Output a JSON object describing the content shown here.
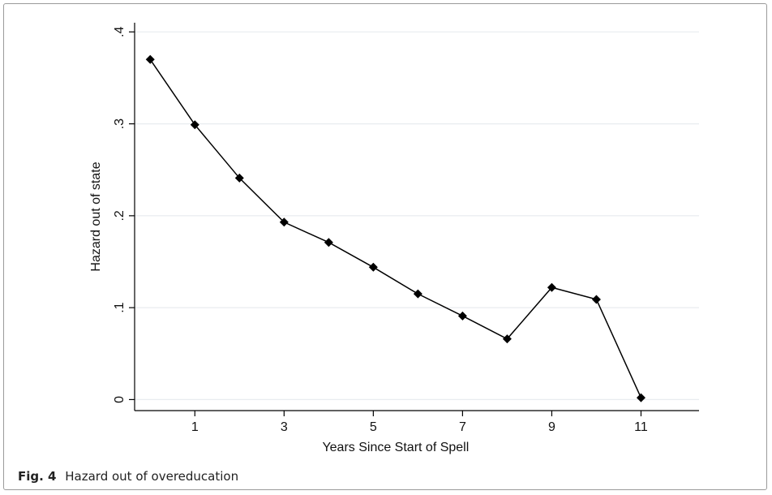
{
  "chart_data": {
    "type": "line",
    "title": "",
    "xlabel": "Years Since Start of Spell",
    "ylabel": "Hazard out of state",
    "x": [
      0,
      1,
      2,
      3,
      4,
      5,
      6,
      7,
      8,
      9,
      10,
      11
    ],
    "series": [
      {
        "values": [
          0.37,
          0.299,
          0.241,
          0.193,
          0.171,
          0.144,
          0.115,
          0.091,
          0.066,
          0.122,
          0.109,
          0.002
        ]
      }
    ],
    "xticks": [
      1,
      3,
      5,
      7,
      9,
      11
    ],
    "xtick_labels": [
      "1",
      "3",
      "5",
      "7",
      "9",
      "11"
    ],
    "yticks": [
      0,
      0.1,
      0.2,
      0.3,
      0.4
    ],
    "ytick_labels": [
      "0",
      ".1",
      ".2",
      ".3",
      ".4"
    ],
    "xlim": [
      -0.35,
      12.3
    ],
    "ylim": [
      -0.012,
      0.41
    ],
    "grid": true,
    "marker": "diamond",
    "line_color": "#000000",
    "grid_color": "#e8ecef"
  },
  "caption": {
    "label": "Fig. 4",
    "text": "Hazard out of overeducation"
  }
}
